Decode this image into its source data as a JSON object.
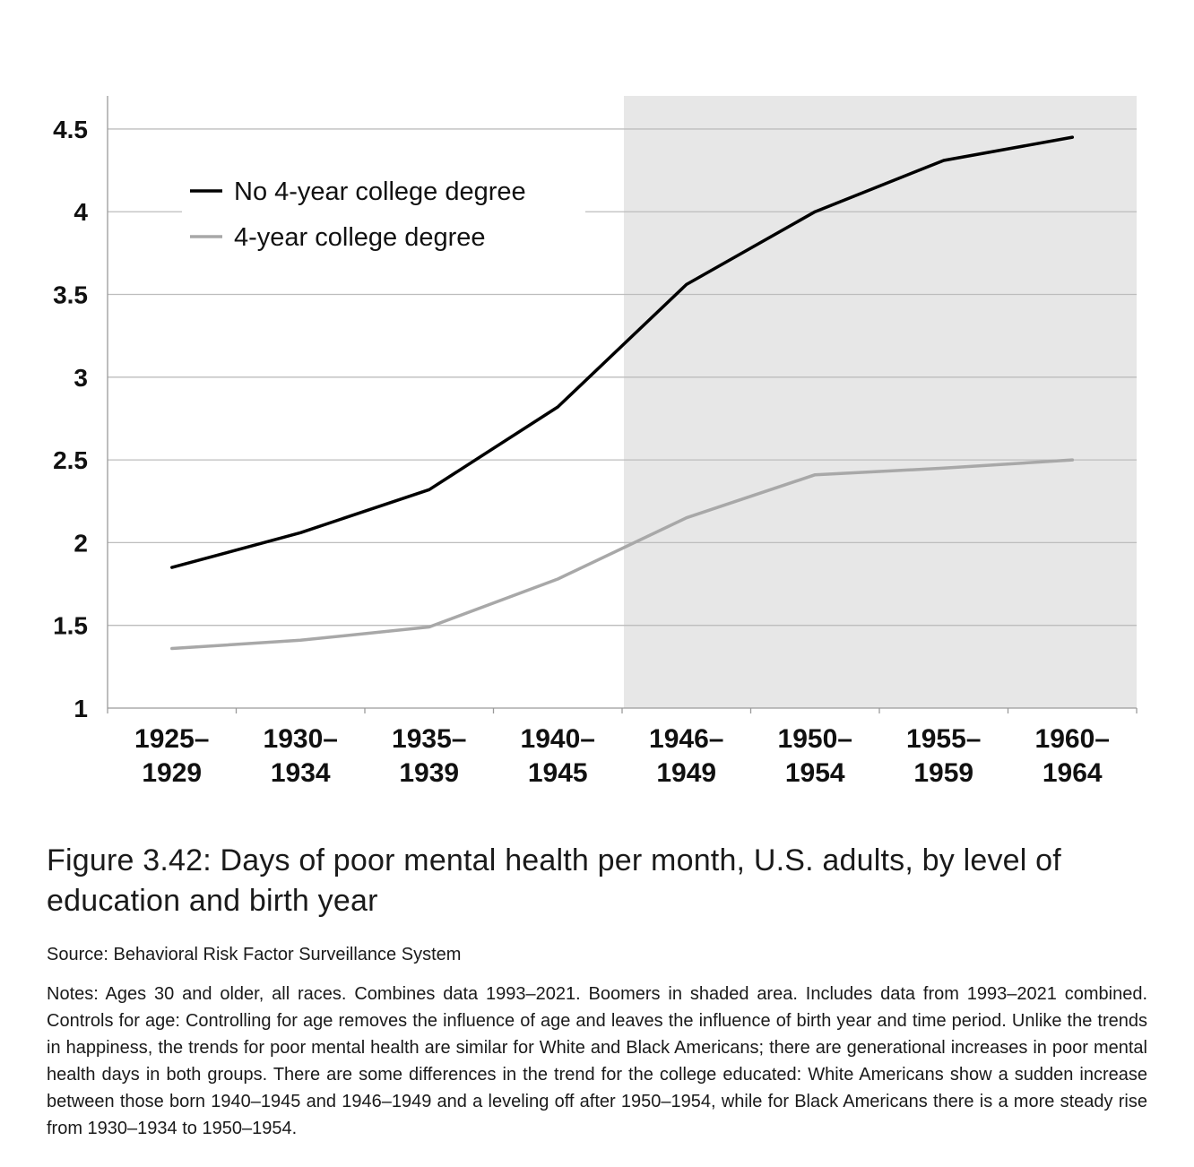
{
  "chart_data": {
    "type": "line",
    "title": "",
    "xlabel": "",
    "ylabel": "",
    "categories": [
      [
        "1925–",
        "1929"
      ],
      [
        "1930–",
        "1934"
      ],
      [
        "1935–",
        "1939"
      ],
      [
        "1940–",
        "1945"
      ],
      [
        "1946–",
        "1949"
      ],
      [
        "1950–",
        "1954"
      ],
      [
        "1955–",
        "1959"
      ],
      [
        "1960–",
        "1964"
      ]
    ],
    "yticks": [
      "1",
      "1.5",
      "2",
      "2.5",
      "3",
      "3.5",
      "4",
      "4.5"
    ],
    "ytick_values": [
      1,
      1.5,
      2,
      2.5,
      3,
      3.5,
      4,
      4.5
    ],
    "ylim": [
      1,
      4.7
    ],
    "grid": true,
    "shaded_region": {
      "label": "Boomers",
      "from_category": "1946–1949",
      "to_category": "1960–1964"
    },
    "legend_position": "top-left",
    "series": [
      {
        "name": "No 4-year college degree",
        "color": "#000000",
        "values": [
          1.85,
          2.06,
          2.32,
          2.82,
          3.56,
          4.0,
          4.31,
          4.45
        ]
      },
      {
        "name": "4-year college degree",
        "color": "#a8a8a8",
        "values": [
          1.36,
          1.41,
          1.49,
          1.78,
          2.15,
          2.41,
          2.45,
          2.5
        ]
      }
    ],
    "colors": {
      "grid": "#bdbdbd",
      "shade": "#e7e7e7",
      "axis": "#9a9a9a"
    }
  },
  "figure": {
    "title": "Figure 3.42: Days of poor mental health per month, U.S. adults, by level of education and birth year",
    "source": "Source: Behavioral Risk Factor Surveillance System",
    "notes": "Notes: Ages 30 and older, all races. Combines data 1993–2021. Boomers in shaded area. Includes data from 1993–2021 combined. Controls for age: Controlling for age removes the influence of age and leaves the influence of birth year and time period. Unlike the trends in happiness, the trends for poor mental health are similar for White and Black Americans; there are generational increases in poor mental health days in both groups. There are some differences in the trend for the college educated: White Americans show a sudden increase between those born 1940–1945 and 1946–1949 and a leveling off after 1950–1954, while for Black Americans there is a more steady rise from 1930–1934 to 1950–1954."
  }
}
